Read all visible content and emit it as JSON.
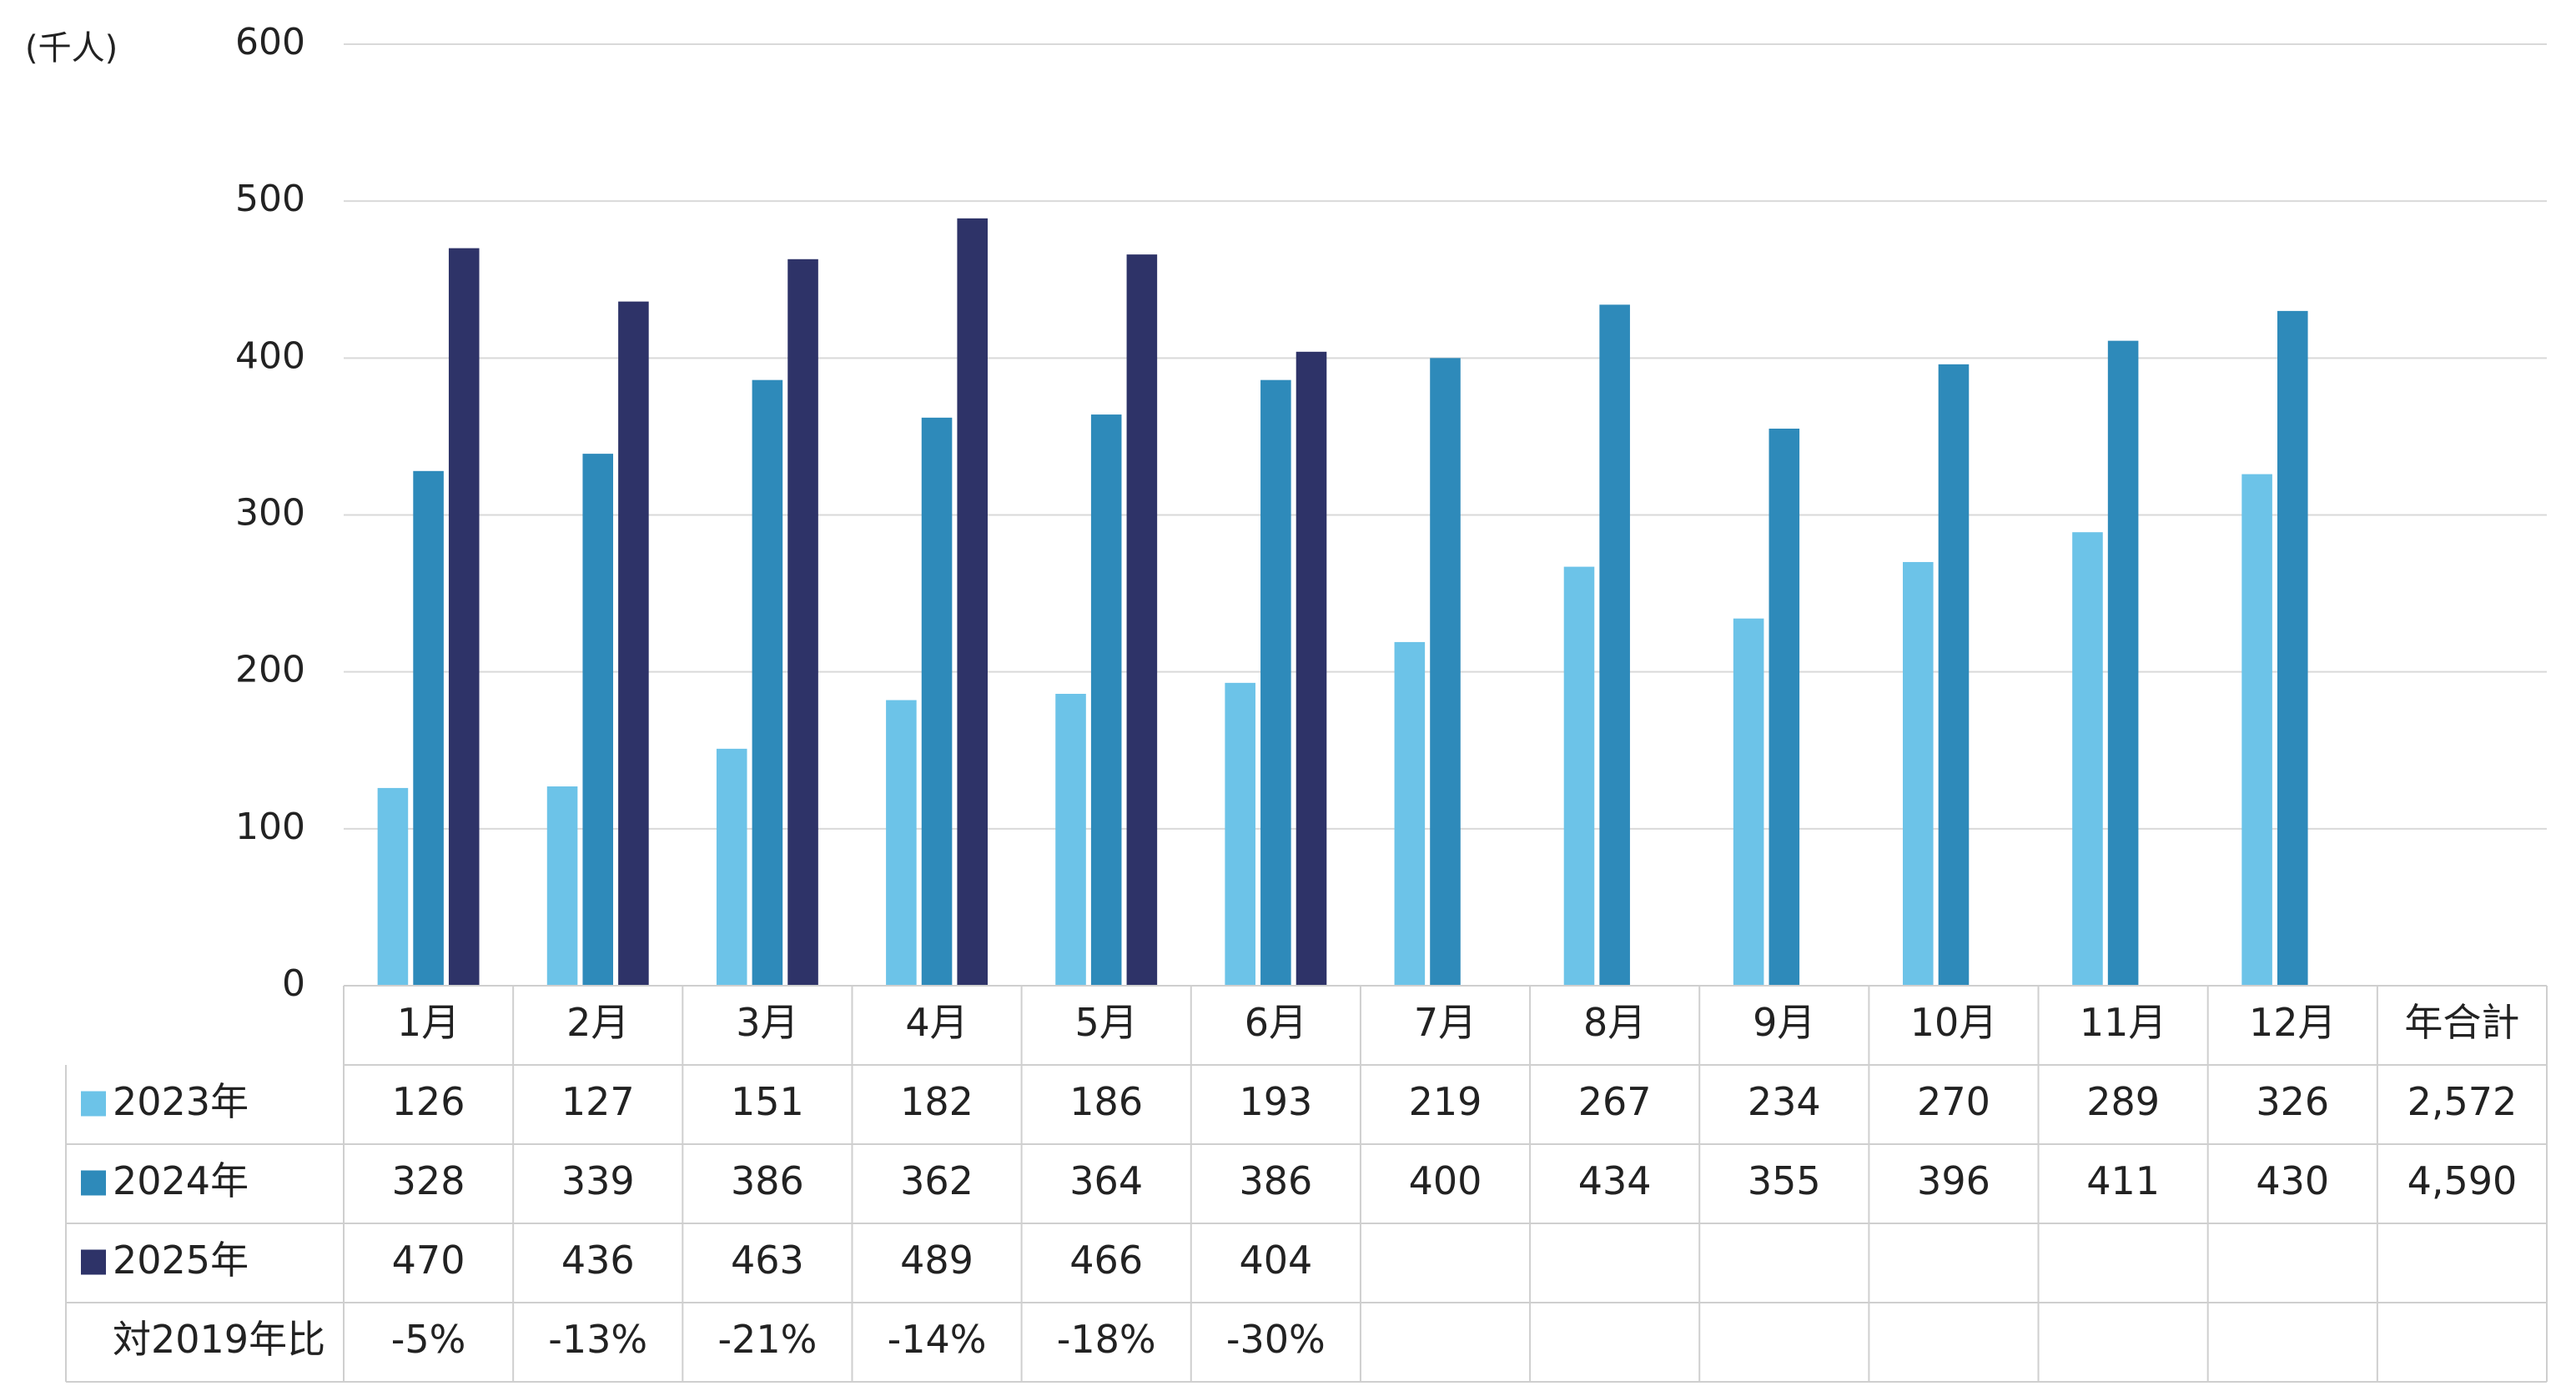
{
  "chart_data": {
    "type": "bar",
    "y_label": "(千人)",
    "categories": [
      "1月",
      "2月",
      "3月",
      "4月",
      "5月",
      "6月",
      "7月",
      "8月",
      "9月",
      "10月",
      "11月",
      "12月"
    ],
    "series": [
      {
        "name": "2023年",
        "color": "#6cc3e8",
        "values": [
          126,
          127,
          151,
          182,
          186,
          193,
          219,
          267,
          234,
          270,
          289,
          326
        ],
        "total": {
          "value": 2572,
          "label": "2,572"
        }
      },
      {
        "name": "2024年",
        "color": "#2e8aba",
        "values": [
          328,
          339,
          386,
          362,
          364,
          386,
          400,
          434,
          355,
          396,
          411,
          430
        ],
        "total": {
          "value": 4590,
          "label": "4,590"
        }
      },
      {
        "name": "2025年",
        "color": "#2e3368",
        "values": [
          470,
          436,
          463,
          489,
          466,
          404,
          null,
          null,
          null,
          null,
          null,
          null
        ]
      }
    ],
    "total_header": "年合計",
    "ratio_row": {
      "name": "対2019年比",
      "values": [
        -5,
        -13,
        -21,
        -14,
        -18,
        -30
      ],
      "value_labels": [
        "-5%",
        "-13%",
        "-21%",
        "-14%",
        "-18%",
        "-30%"
      ]
    },
    "ylim": [
      0,
      600
    ],
    "yticks": [
      0,
      100,
      200,
      300,
      400,
      500,
      600
    ],
    "grid": true
  }
}
